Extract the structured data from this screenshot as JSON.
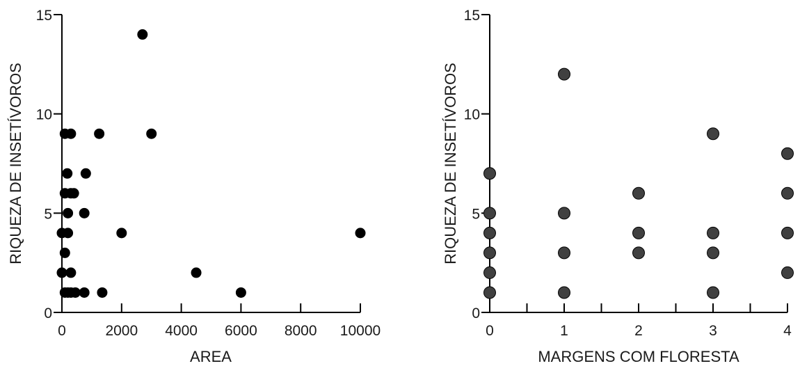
{
  "chart_data": [
    {
      "type": "scatter",
      "xlabel": "AREA",
      "ylabel": "RIQUEZA DE INSETÍVOROS",
      "xlim": [
        0,
        10000
      ],
      "ylim": [
        0,
        15
      ],
      "x_ticks": [
        0,
        2000,
        4000,
        6000,
        8000,
        10000
      ],
      "x_minor_ticks": [],
      "y_ticks": [
        0,
        5,
        10,
        15
      ],
      "grid": false,
      "marker_color": "#000000",
      "marker_outline": "#000000",
      "points": [
        {
          "x": 2700,
          "y": 14
        },
        {
          "x": 100,
          "y": 9
        },
        {
          "x": 300,
          "y": 9
        },
        {
          "x": 1250,
          "y": 9
        },
        {
          "x": 3000,
          "y": 9
        },
        {
          "x": 180,
          "y": 7
        },
        {
          "x": 800,
          "y": 7
        },
        {
          "x": 100,
          "y": 6
        },
        {
          "x": 300,
          "y": 6
        },
        {
          "x": 400,
          "y": 6
        },
        {
          "x": 200,
          "y": 5
        },
        {
          "x": 750,
          "y": 5
        },
        {
          "x": 0,
          "y": 4
        },
        {
          "x": 200,
          "y": 4
        },
        {
          "x": 2000,
          "y": 4
        },
        {
          "x": 10000,
          "y": 4
        },
        {
          "x": 100,
          "y": 3
        },
        {
          "x": 0,
          "y": 2
        },
        {
          "x": 300,
          "y": 2
        },
        {
          "x": 4500,
          "y": 2
        },
        {
          "x": 100,
          "y": 1
        },
        {
          "x": 200,
          "y": 1
        },
        {
          "x": 300,
          "y": 1
        },
        {
          "x": 450,
          "y": 1
        },
        {
          "x": 750,
          "y": 1
        },
        {
          "x": 1350,
          "y": 1
        },
        {
          "x": 6000,
          "y": 1
        }
      ]
    },
    {
      "type": "scatter",
      "xlabel": "MARGENS COM FLORESTA",
      "ylabel": "RIQUEZA DE INSETÍVOROS",
      "xlim": [
        0,
        4
      ],
      "ylim": [
        0,
        15
      ],
      "x_ticks": [
        0,
        1,
        2,
        3,
        4
      ],
      "x_minor_ticks": [
        0.5,
        1.5,
        2.5,
        3.5
      ],
      "y_ticks": [
        0,
        5,
        10,
        15
      ],
      "grid": false,
      "marker_color": "#404040",
      "marker_outline": "#000000",
      "points": [
        {
          "x": 0,
          "y": 7
        },
        {
          "x": 0,
          "y": 5
        },
        {
          "x": 0,
          "y": 4
        },
        {
          "x": 0,
          "y": 3
        },
        {
          "x": 0,
          "y": 2
        },
        {
          "x": 0,
          "y": 1
        },
        {
          "x": 1,
          "y": 12
        },
        {
          "x": 1,
          "y": 5
        },
        {
          "x": 1,
          "y": 3
        },
        {
          "x": 1,
          "y": 1
        },
        {
          "x": 2,
          "y": 6
        },
        {
          "x": 2,
          "y": 4
        },
        {
          "x": 2,
          "y": 3
        },
        {
          "x": 3,
          "y": 9
        },
        {
          "x": 3,
          "y": 4
        },
        {
          "x": 3,
          "y": 3
        },
        {
          "x": 3,
          "y": 1
        },
        {
          "x": 4,
          "y": 8
        },
        {
          "x": 4,
          "y": 6
        },
        {
          "x": 4,
          "y": 4
        },
        {
          "x": 4,
          "y": 2
        }
      ]
    }
  ]
}
